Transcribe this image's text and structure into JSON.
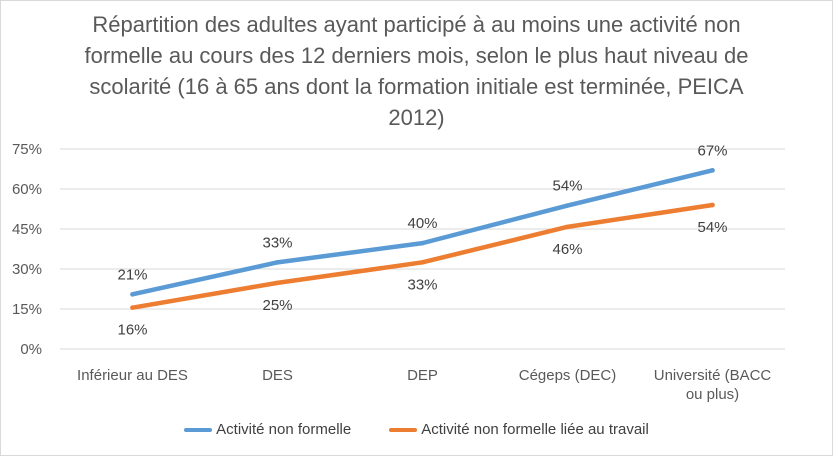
{
  "chart_data": {
    "type": "line",
    "title": "Répartition des adultes ayant participé à au moins une activité non formelle au cours des 12 derniers mois, selon le plus haut niveau de scolarité (16 à 65 ans dont la formation initiale est terminée, PEICA 2012)",
    "categories": [
      "Inférieur au DES",
      "DES",
      "DEP",
      "Cégeps (DEC)",
      "Université (BACC ou plus)"
    ],
    "ylim": [
      0,
      75
    ],
    "yticks": [
      0,
      15,
      30,
      45,
      60,
      75
    ],
    "ytick_labels": [
      "0%",
      "15%",
      "30%",
      "45%",
      "60%",
      "75%"
    ],
    "grid": true,
    "legend_position": "bottom",
    "series": [
      {
        "name": "Activité non formelle",
        "color": "#5b9bd5",
        "values": [
          20.5,
          32.5,
          39.7,
          53.8,
          67
        ],
        "labels": [
          "21%",
          "33%",
          "40%",
          "54%",
          "67%"
        ]
      },
      {
        "name": "Activité non formelle liée au travail",
        "color": "#ed7d31",
        "values": [
          15.5,
          24.8,
          32.5,
          45.8,
          54
        ],
        "labels": [
          "16%",
          "25%",
          "33%",
          "46%",
          "54%"
        ]
      }
    ]
  }
}
